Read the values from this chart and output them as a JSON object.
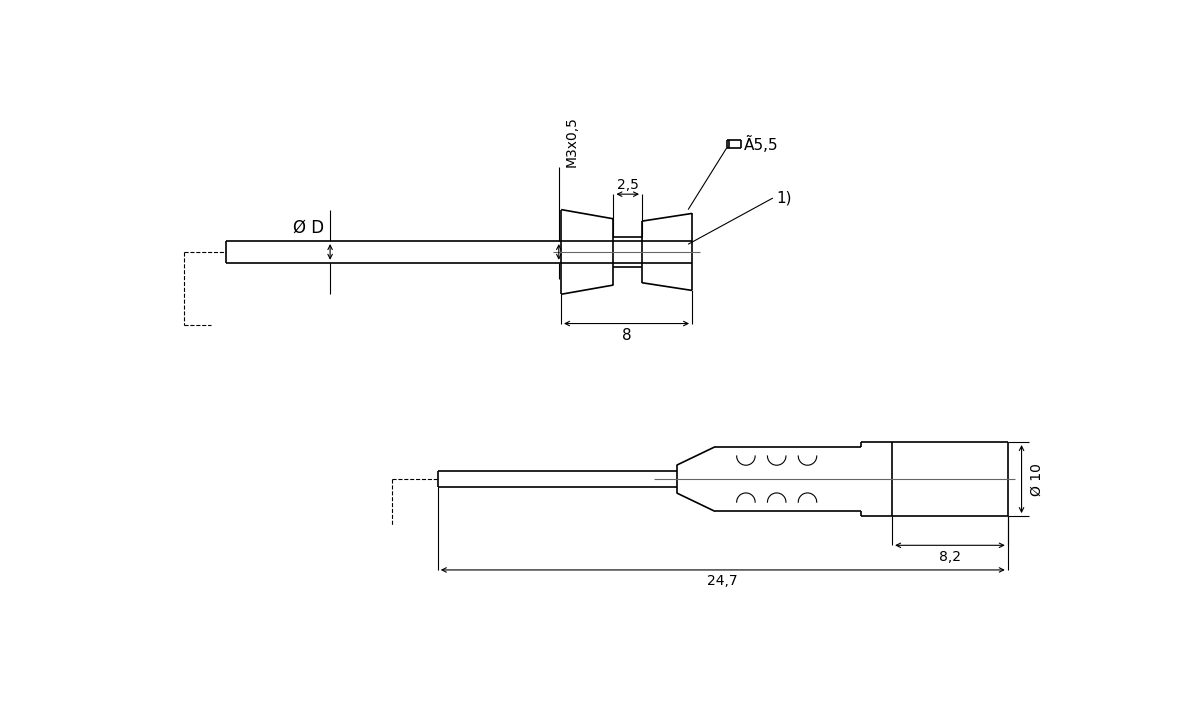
{
  "bg_color": "#ffffff",
  "line_color": "#000000",
  "fig_width": 12.0,
  "fig_height": 7.07,
  "dpi": 100,
  "annotations": {
    "phi_D": "Ø D",
    "M3x05": "M3x0,5",
    "dim_25": "2,5",
    "dim_8": "8",
    "dim_55": "Ã5,5",
    "label_1": "1)",
    "phi_10": "Ø 10",
    "dim_82": "8,2",
    "dim_247": "24,7"
  }
}
